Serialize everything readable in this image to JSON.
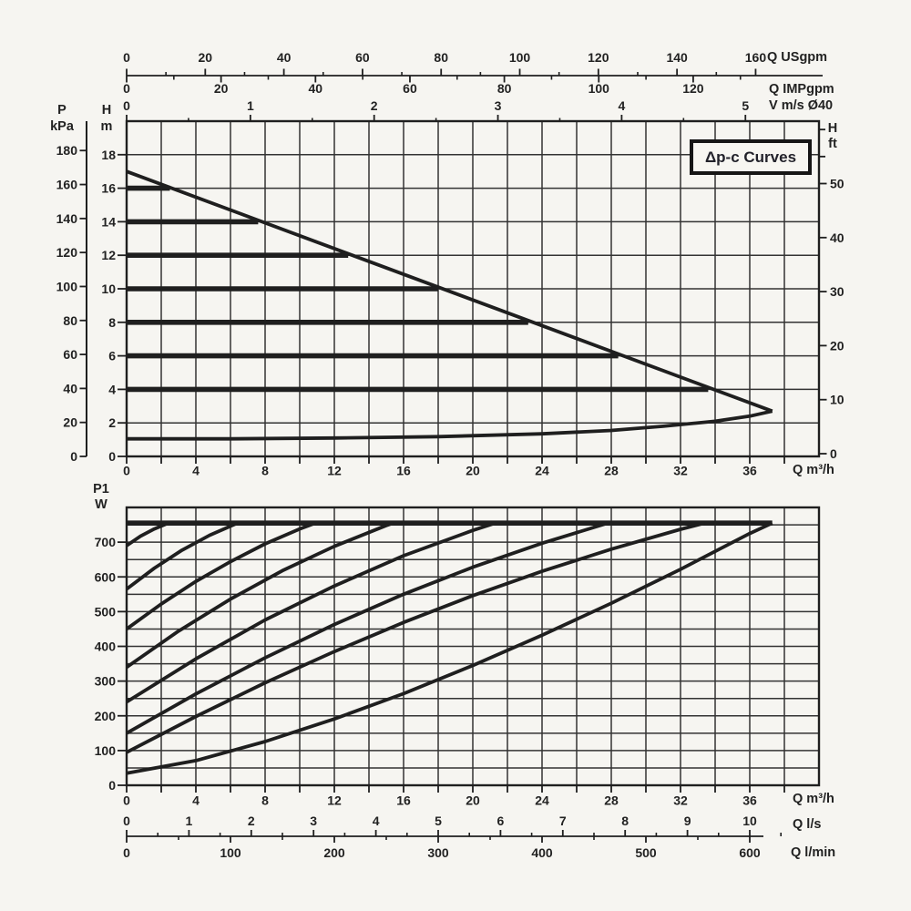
{
  "figure": {
    "curve_family_label": "Δp-c Curves",
    "background_color": "#f6f5f1",
    "ink_color": "#1f1f1f"
  },
  "unit_labels": {
    "pressure_kpa": [
      "P",
      "kPa"
    ],
    "head_m": [
      "H",
      "m"
    ],
    "head_ft": [
      "H",
      "ft"
    ],
    "power_w": [
      "P1",
      "W"
    ],
    "q_usgpm": "Q USgpm",
    "q_impgpm": "Q IMPgpm",
    "v_ms": "V m/s Ø40",
    "q_m3h_top": "Q m³/h",
    "q_m3h_bottom": "Q m³/h",
    "q_ls": "Q l/s",
    "q_lmin": "Q l/min"
  },
  "axes": {
    "top_chart": {
      "kpa_ticks": [
        180,
        160,
        140,
        120,
        100,
        80,
        60,
        40,
        20,
        0
      ],
      "m_ticks": [
        18,
        16,
        14,
        12,
        10,
        8,
        6,
        4,
        2,
        0
      ],
      "ft_ticks": [
        50,
        40,
        30,
        20,
        10,
        0
      ],
      "ft_minor_ticks": [
        60,
        55
      ],
      "usgpm_ticks": [
        0,
        20,
        40,
        60,
        80,
        100,
        120,
        140,
        160
      ],
      "impgpm_ticks": [
        0,
        20,
        40,
        60,
        80,
        100,
        120
      ],
      "impgpm_minor_ticks": [
        10,
        30,
        50,
        70,
        90,
        110,
        130
      ],
      "v_ticks": [
        0,
        1,
        2,
        3,
        4,
        5
      ],
      "q_ticks": [
        0,
        4,
        8,
        12,
        16,
        20,
        24,
        28,
        32,
        36
      ],
      "q_minor_step": 2
    },
    "bottom_chart": {
      "w_ticks": [
        700,
        600,
        500,
        400,
        300,
        200,
        100,
        0
      ],
      "q_ticks": [
        0,
        4,
        8,
        12,
        16,
        20,
        24,
        28,
        32,
        36
      ],
      "q_minor_step": 2,
      "ls_ticks": [
        0,
        1,
        2,
        3,
        4,
        5,
        6,
        7,
        8,
        9,
        10
      ],
      "lmin_ticks": [
        0,
        100,
        200,
        300,
        400,
        500,
        600
      ]
    }
  },
  "chart_data": [
    {
      "type": "line",
      "title": "Δp-c Curves",
      "xlabel": "Q m³/h",
      "ylabel": "H m",
      "secondary_x_axes": [
        "Q USgpm",
        "Q IMPgpm",
        "V m/s Ø40"
      ],
      "secondary_y_axes": [
        "P kPa",
        "H ft"
      ],
      "xlim": [
        0,
        40
      ],
      "ylim": [
        0,
        20
      ],
      "grid": true,
      "x_grid_step": 2,
      "y_grid_step": 2,
      "series": [
        {
          "name": "envelope-max-speed",
          "width": 3.8,
          "points": [
            [
              0,
              17
            ],
            [
              37.3,
              2.7
            ]
          ]
        },
        {
          "name": "envelope-min-speed",
          "width": 3.8,
          "points": [
            [
              0,
              1.05
            ],
            [
              6,
              1.05
            ],
            [
              12,
              1.1
            ],
            [
              18,
              1.18
            ],
            [
              24,
              1.35
            ],
            [
              28,
              1.55
            ],
            [
              31,
              1.8
            ],
            [
              34,
              2.1
            ],
            [
              36,
              2.4
            ],
            [
              37.3,
              2.7
            ]
          ]
        },
        {
          "name": "dpc-setpoint-16m",
          "width": 5.6,
          "points": [
            [
              0,
              16
            ],
            [
              2.5,
              16
            ]
          ]
        },
        {
          "name": "dpc-setpoint-14m",
          "width": 5.6,
          "points": [
            [
              0,
              14
            ],
            [
              7.6,
              14
            ]
          ]
        },
        {
          "name": "dpc-setpoint-12m",
          "width": 5.6,
          "points": [
            [
              0,
              12
            ],
            [
              12.8,
              12
            ]
          ]
        },
        {
          "name": "dpc-setpoint-10m",
          "width": 5.6,
          "points": [
            [
              0,
              10
            ],
            [
              18.0,
              10
            ]
          ]
        },
        {
          "name": "dpc-setpoint-8m",
          "width": 5.6,
          "points": [
            [
              0,
              8
            ],
            [
              23.2,
              8
            ]
          ]
        },
        {
          "name": "dpc-setpoint-6m",
          "width": 5.6,
          "points": [
            [
              0,
              6
            ],
            [
              28.4,
              6
            ]
          ]
        },
        {
          "name": "dpc-setpoint-4m",
          "width": 5.6,
          "points": [
            [
              0,
              4
            ],
            [
              33.6,
              4
            ]
          ]
        }
      ]
    },
    {
      "type": "line",
      "title": "",
      "xlabel": "Q m³/h",
      "ylabel": "P1 W",
      "secondary_x_axes": [
        "Q l/s",
        "Q l/min"
      ],
      "xlim": [
        0,
        40
      ],
      "ylim": [
        0,
        800
      ],
      "grid": true,
      "x_grid_step": 2,
      "y_grid_step": 50,
      "series": [
        {
          "name": "power-limit-755w",
          "width": 5.6,
          "points": [
            [
              0,
              755
            ],
            [
              37.3,
              755
            ]
          ]
        },
        {
          "name": "p1-curve-690w",
          "width": 3.8,
          "points": [
            [
              0,
              690
            ],
            [
              0.8,
              717
            ],
            [
              1.6,
              738
            ],
            [
              2.4,
              755
            ]
          ]
        },
        {
          "name": "p1-curve-565w",
          "width": 3.8,
          "points": [
            [
              0,
              565
            ],
            [
              1.6,
              625
            ],
            [
              3.2,
              677
            ],
            [
              4.8,
              720
            ],
            [
              6.4,
              755
            ]
          ]
        },
        {
          "name": "p1-curve-450w",
          "width": 3.8,
          "points": [
            [
              0,
              450
            ],
            [
              2,
              522
            ],
            [
              4,
              587
            ],
            [
              6,
              644
            ],
            [
              8,
              695
            ],
            [
              10,
              738
            ],
            [
              10.9,
              755
            ]
          ]
        },
        {
          "name": "p1-curve-340w",
          "width": 3.8,
          "points": [
            [
              0,
              340
            ],
            [
              3,
              444
            ],
            [
              6,
              536
            ],
            [
              9,
              618
            ],
            [
              12,
              688
            ],
            [
              15,
              748
            ],
            [
              15.4,
              755
            ]
          ]
        },
        {
          "name": "p1-curve-240w",
          "width": 3.8,
          "points": [
            [
              0,
              240
            ],
            [
              4,
              364
            ],
            [
              8,
              476
            ],
            [
              12,
              574
            ],
            [
              16,
              661
            ],
            [
              20,
              734
            ],
            [
              21.3,
              755
            ]
          ]
        },
        {
          "name": "p1-curve-150w",
          "width": 3.8,
          "points": [
            [
              0,
              150
            ],
            [
              4,
              263
            ],
            [
              8,
              367
            ],
            [
              12,
              463
            ],
            [
              16,
              550
            ],
            [
              20,
              628
            ],
            [
              24,
              697
            ],
            [
              27.8,
              755
            ]
          ]
        },
        {
          "name": "p1-curve-95w",
          "width": 3.8,
          "points": [
            [
              0,
              95
            ],
            [
              4,
              198
            ],
            [
              8,
              295
            ],
            [
              12,
              385
            ],
            [
              16,
              469
            ],
            [
              20,
              546
            ],
            [
              24,
              616
            ],
            [
              28,
              680
            ],
            [
              32,
              737
            ],
            [
              33.4,
              755
            ]
          ]
        },
        {
          "name": "p1-curve-35w",
          "width": 3.8,
          "points": [
            [
              0,
              35
            ],
            [
              4,
              71
            ],
            [
              8,
              126
            ],
            [
              12,
              191
            ],
            [
              16,
              264
            ],
            [
              20,
              345
            ],
            [
              24,
              432
            ],
            [
              28,
              524
            ],
            [
              32,
              622
            ],
            [
              36,
              725
            ],
            [
              37.3,
              755
            ]
          ]
        }
      ]
    }
  ]
}
